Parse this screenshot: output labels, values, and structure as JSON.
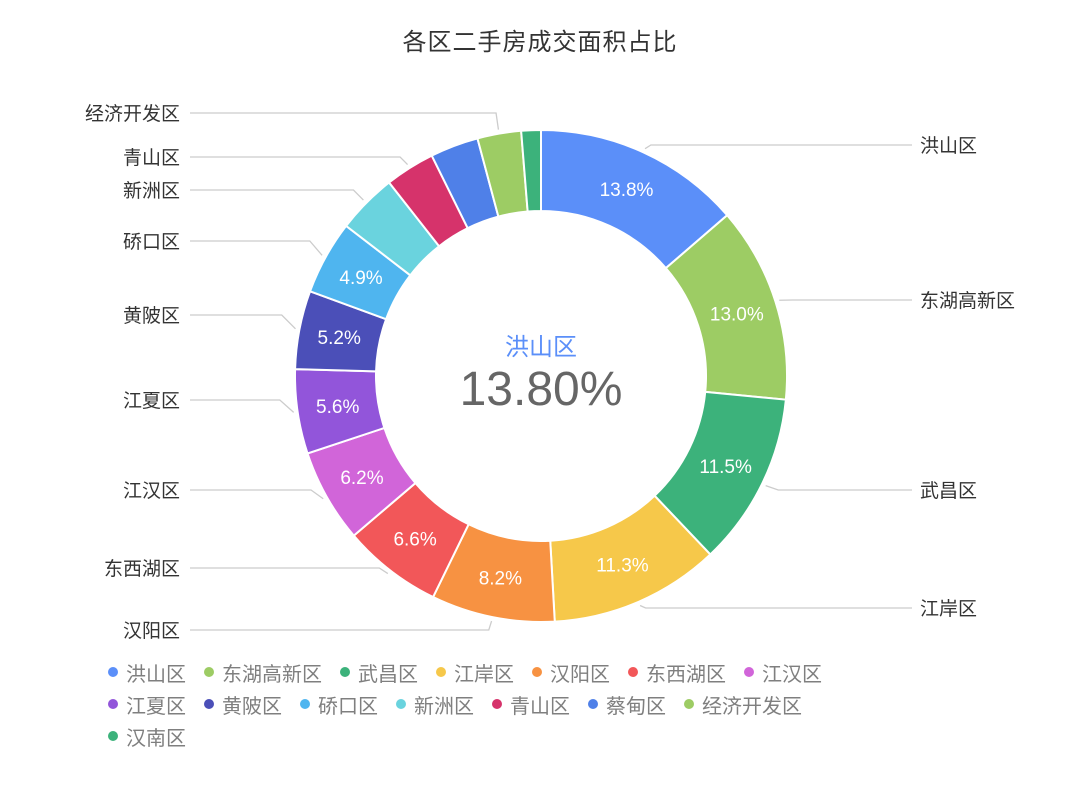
{
  "chart_data": {
    "type": "pie",
    "variant": "donut",
    "title": "各区二手房成交面积占比",
    "center": {
      "label": "洪山区",
      "value": "13.80%"
    },
    "slices": [
      {
        "name": "洪山区",
        "value": 13.8,
        "display": "13.8%",
        "color": "#5b8ff9"
      },
      {
        "name": "东湖高新区",
        "value": 13.0,
        "display": "13.0%",
        "color": "#9dcc64"
      },
      {
        "name": "武昌区",
        "value": 11.5,
        "display": "11.5%",
        "color": "#3cb27b"
      },
      {
        "name": "江岸区",
        "value": 11.3,
        "display": "11.3%",
        "color": "#f6c84a"
      },
      {
        "name": "汉阳区",
        "value": 8.2,
        "display": "8.2%",
        "color": "#f79242"
      },
      {
        "name": "东西湖区",
        "value": 6.6,
        "display": "6.6%",
        "color": "#f25759"
      },
      {
        "name": "江汉区",
        "value": 6.2,
        "display": "6.2%",
        "color": "#d165d9"
      },
      {
        "name": "江夏区",
        "value": 5.6,
        "display": "5.6%",
        "color": "#9255da"
      },
      {
        "name": "黄陂区",
        "value": 5.2,
        "display": "5.2%",
        "color": "#4b4fb8"
      },
      {
        "name": "硚口区",
        "value": 4.9,
        "display": "4.9%",
        "color": "#4fb5ef"
      },
      {
        "name": "新洲区",
        "value": 4.0,
        "display": "",
        "color": "#6ad3de"
      },
      {
        "name": "青山区",
        "value": 3.3,
        "display": "",
        "color": "#d6336b"
      },
      {
        "name": "蔡甸区",
        "value": 3.2,
        "display": "",
        "color": "#4f80e8"
      },
      {
        "name": "经济开发区",
        "value": 2.9,
        "display": "",
        "color": "#9dcc64"
      },
      {
        "name": "汉南区",
        "value": 1.3,
        "display": "",
        "color": "#3cb27b"
      }
    ],
    "legend_position": "bottom"
  }
}
